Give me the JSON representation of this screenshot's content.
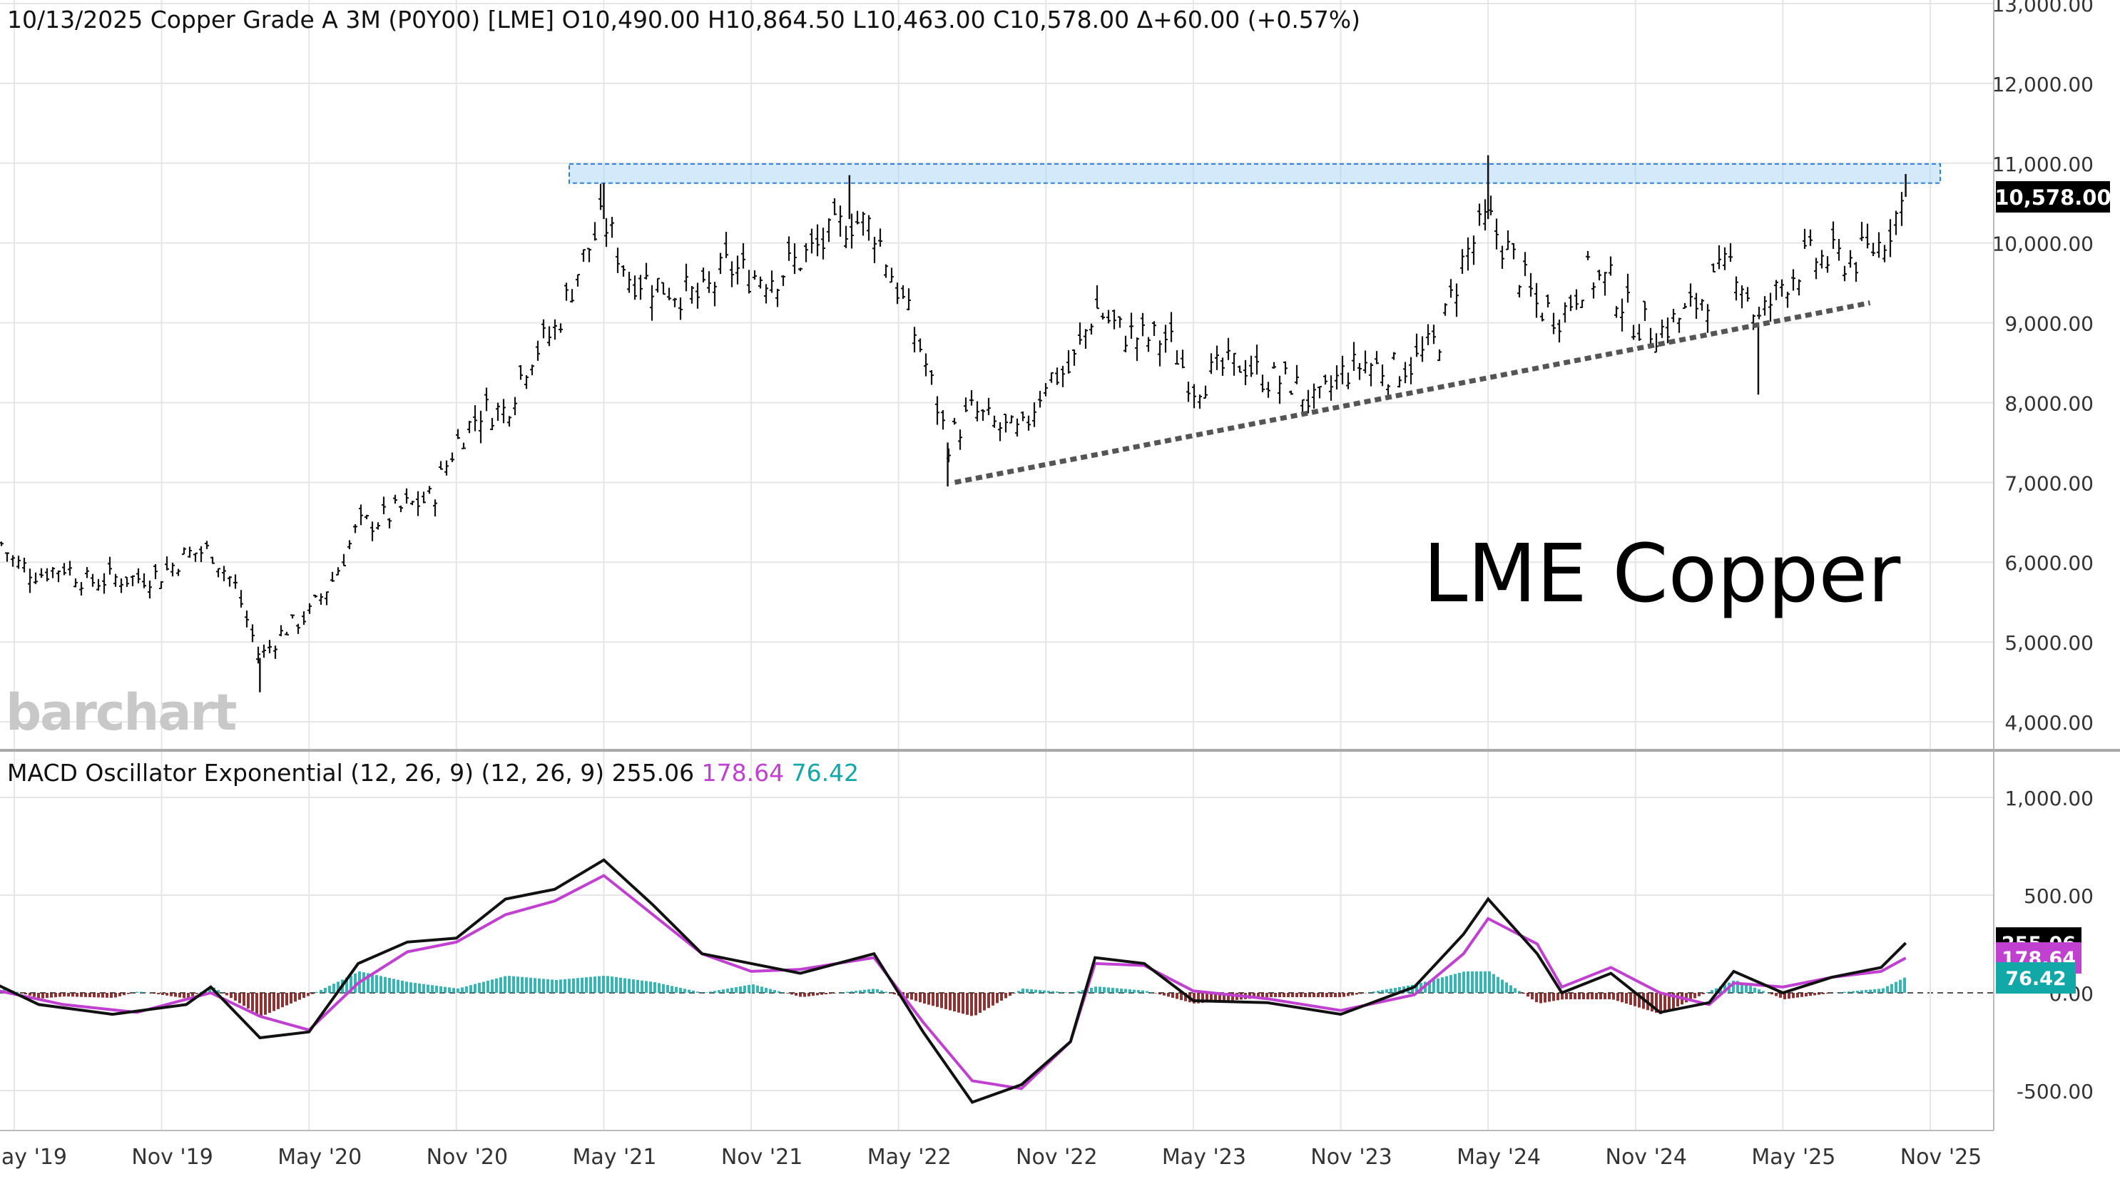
{
  "header": {
    "date": "10/13/2025",
    "instrument": "Copper Grade A 3M (P0Y00) [LME]",
    "open": "O10,490.00",
    "high": "H10,864.50",
    "low": "L10,463.00",
    "close": "C10,578.00",
    "change": "Δ+60.00 (+0.57%)"
  },
  "macd_header": {
    "label": "MACD Oscillator Exponential (12, 26, 9)  (12, 26, 9)",
    "macd_value": "255.06",
    "signal_value": "178.64",
    "hist_value": "76.42"
  },
  "annotation": "LME Copper",
  "logo": "barchart",
  "last_price_tag": "10,578.00",
  "macd_tags": [
    "255.06",
    "178.64",
    "76.42"
  ],
  "colors": {
    "bars": "#111111",
    "macd_line": "#111111",
    "signal_line": "#c040d0",
    "hist_pos": "#13a8a8",
    "hist_neg": "#7a0f0f",
    "resistance_zone": "#a9d4f5",
    "trendline": "#555555"
  },
  "chart_data": [
    {
      "type": "ohlc",
      "title": "Copper Grade A 3M (P0Y00) [LME]",
      "ylim": [
        4000,
        13000
      ],
      "y_ticks": [
        "4,000.00",
        "5,000.00",
        "6,000.00",
        "7,000.00",
        "8,000.00",
        "9,000.00",
        "10,000.00",
        "11,000.00",
        "12,000.00",
        "13,000.00"
      ],
      "x_ticks": [
        "May '19",
        "Nov '19",
        "May '20",
        "Nov '20",
        "May '21",
        "Nov '21",
        "May '22",
        "Nov '22",
        "May '23",
        "Nov '23",
        "May '24",
        "Nov '24",
        "May '25",
        "Nov '25"
      ],
      "weekly_close_path": [
        [
          "2019-04",
          6450
        ],
        [
          "2019-05",
          6000
        ],
        [
          "2019-06",
          5850
        ],
        [
          "2019-07",
          5950
        ],
        [
          "2019-08",
          5750
        ],
        [
          "2019-09",
          5800
        ],
        [
          "2019-10",
          5800
        ],
        [
          "2019-11",
          5850
        ],
        [
          "2019-12",
          6100
        ],
        [
          "2020-01",
          6150
        ],
        [
          "2020-02",
          5700
        ],
        [
          "2020-03",
          4800
        ],
        [
          "2020-04",
          5150
        ],
        [
          "2020-05",
          5350
        ],
        [
          "2020-06",
          5800
        ],
        [
          "2020-07",
          6450
        ],
        [
          "2020-08",
          6550
        ],
        [
          "2020-09",
          6700
        ],
        [
          "2020-10",
          6800
        ],
        [
          "2020-11",
          7500
        ],
        [
          "2020-12",
          7900
        ],
        [
          "2021-01",
          7900
        ],
        [
          "2021-02",
          8600
        ],
        [
          "2021-03",
          8900
        ],
        [
          "2021-04",
          9700
        ],
        [
          "2021-05",
          10300
        ],
        [
          "2021-06",
          9600
        ],
        [
          "2021-07",
          9500
        ],
        [
          "2021-08",
          9400
        ],
        [
          "2021-09",
          9300
        ],
        [
          "2021-10",
          9700
        ],
        [
          "2021-11",
          9600
        ],
        [
          "2021-12",
          9600
        ],
        [
          "2022-01",
          9800
        ],
        [
          "2022-02",
          10000
        ],
        [
          "2022-03",
          10300
        ],
        [
          "2022-04",
          10200
        ],
        [
          "2022-05",
          9400
        ],
        [
          "2022-06",
          8600
        ],
        [
          "2022-07",
          7500
        ],
        [
          "2022-08",
          7900
        ],
        [
          "2022-09",
          7700
        ],
        [
          "2022-10",
          7600
        ],
        [
          "2022-11",
          8300
        ],
        [
          "2022-12",
          8400
        ],
        [
          "2023-01",
          9200
        ],
        [
          "2023-02",
          8900
        ],
        [
          "2023-03",
          8800
        ],
        [
          "2023-04",
          8800
        ],
        [
          "2023-05",
          8200
        ],
        [
          "2023-06",
          8400
        ],
        [
          "2023-07",
          8500
        ],
        [
          "2023-08",
          8300
        ],
        [
          "2023-09",
          8250
        ],
        [
          "2023-10",
          7950
        ],
        [
          "2023-11",
          8350
        ],
        [
          "2023-12",
          8500
        ],
        [
          "2024-01",
          8400
        ],
        [
          "2024-02",
          8500
        ],
        [
          "2024-03",
          8800
        ],
        [
          "2024-04",
          9800
        ],
        [
          "2024-05",
          10300
        ],
        [
          "2024-06",
          9800
        ],
        [
          "2024-07",
          9200
        ],
        [
          "2024-08",
          9100
        ],
        [
          "2024-09",
          9600
        ],
        [
          "2024-10",
          9500
        ],
        [
          "2024-11",
          9000
        ],
        [
          "2024-12",
          8900
        ],
        [
          "2025-01",
          9100
        ],
        [
          "2025-02",
          9400
        ],
        [
          "2025-03",
          9800
        ],
        [
          "2025-04",
          9000
        ],
        [
          "2025-05",
          9500
        ],
        [
          "2025-06",
          9800
        ],
        [
          "2025-07",
          9800
        ],
        [
          "2025-08",
          9800
        ],
        [
          "2025-09",
          10000
        ],
        [
          "2025-10",
          10578
        ]
      ],
      "key_extremes": [
        {
          "date": "2020-03",
          "low": 4370
        },
        {
          "date": "2021-05",
          "high": 10750
        },
        {
          "date": "2022-03",
          "high": 10850
        },
        {
          "date": "2022-07",
          "low": 6950
        },
        {
          "date": "2024-05",
          "high": 11100
        },
        {
          "date": "2025-04",
          "low": 8100
        },
        {
          "date": "2025-10",
          "high": 10864.5,
          "close": 10578
        }
      ],
      "resistance_zone": [
        10750,
        10990
      ],
      "support_trendline": [
        [
          "2022-07",
          7000
        ],
        [
          "2025-10",
          9250
        ]
      ],
      "last_close": 10578
    },
    {
      "type": "line",
      "title": "MACD Oscillator Exponential (12, 26, 9)",
      "ylim": [
        -600,
        1000
      ],
      "y_ticks": [
        "-500.00",
        "0.00",
        "500.00",
        "1,000.00"
      ],
      "series": [
        {
          "name": "MACD",
          "values": [
            [
              "2019-04",
              60
            ],
            [
              "2019-06",
              -60
            ],
            [
              "2019-09",
              -110
            ],
            [
              "2019-12",
              -60
            ],
            [
              "2020-01",
              30
            ],
            [
              "2020-03",
              -230
            ],
            [
              "2020-05",
              -200
            ],
            [
              "2020-07",
              150
            ],
            [
              "2020-09",
              260
            ],
            [
              "2020-11",
              280
            ],
            [
              "2021-01",
              480
            ],
            [
              "2021-03",
              530
            ],
            [
              "2021-05",
              680
            ],
            [
              "2021-07",
              450
            ],
            [
              "2021-09",
              200
            ],
            [
              "2021-11",
              150
            ],
            [
              "2022-01",
              100
            ],
            [
              "2022-04",
              200
            ],
            [
              "2022-06",
              -200
            ],
            [
              "2022-08",
              -560
            ],
            [
              "2022-10",
              -470
            ],
            [
              "2022-12",
              -250
            ],
            [
              "2023-01",
              180
            ],
            [
              "2023-03",
              150
            ],
            [
              "2023-05",
              -40
            ],
            [
              "2023-08",
              -50
            ],
            [
              "2023-11",
              -110
            ],
            [
              "2024-02",
              30
            ],
            [
              "2024-04",
              300
            ],
            [
              "2024-05",
              480
            ],
            [
              "2024-07",
              200
            ],
            [
              "2024-08",
              0
            ],
            [
              "2024-10",
              100
            ],
            [
              "2024-12",
              -100
            ],
            [
              "2025-02",
              -50
            ],
            [
              "2025-03",
              110
            ],
            [
              "2025-05",
              0
            ],
            [
              "2025-07",
              80
            ],
            [
              "2025-09",
              130
            ],
            [
              "2025-10",
              255.06
            ]
          ]
        },
        {
          "name": "Signal",
          "values": [
            [
              "2019-04",
              20
            ],
            [
              "2019-07",
              -60
            ],
            [
              "2019-10",
              -100
            ],
            [
              "2020-01",
              0
            ],
            [
              "2020-03",
              -120
            ],
            [
              "2020-05",
              -190
            ],
            [
              "2020-07",
              50
            ],
            [
              "2020-09",
              210
            ],
            [
              "2020-11",
              260
            ],
            [
              "2021-01",
              400
            ],
            [
              "2021-03",
              470
            ],
            [
              "2021-05",
              600
            ],
            [
              "2021-07",
              400
            ],
            [
              "2021-09",
              200
            ],
            [
              "2021-11",
              110
            ],
            [
              "2022-01",
              120
            ],
            [
              "2022-04",
              180
            ],
            [
              "2022-06",
              -150
            ],
            [
              "2022-08",
              -450
            ],
            [
              "2022-10",
              -490
            ],
            [
              "2022-12",
              -250
            ],
            [
              "2023-01",
              150
            ],
            [
              "2023-03",
              140
            ],
            [
              "2023-05",
              10
            ],
            [
              "2023-08",
              -30
            ],
            [
              "2023-11",
              -90
            ],
            [
              "2024-02",
              -10
            ],
            [
              "2024-04",
              200
            ],
            [
              "2024-05",
              380
            ],
            [
              "2024-07",
              250
            ],
            [
              "2024-08",
              30
            ],
            [
              "2024-10",
              130
            ],
            [
              "2024-12",
              0
            ],
            [
              "2025-02",
              -60
            ],
            [
              "2025-03",
              50
            ],
            [
              "2025-05",
              30
            ],
            [
              "2025-07",
              80
            ],
            [
              "2025-09",
              110
            ],
            [
              "2025-10",
              178.64
            ]
          ]
        }
      ],
      "histogram_last": 76.42
    }
  ]
}
